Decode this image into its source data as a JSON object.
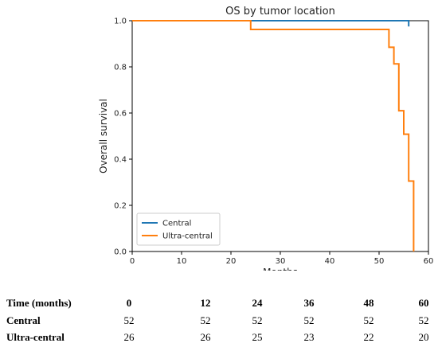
{
  "chart_data": {
    "type": "line",
    "title": "OS by tumor location",
    "xlabel": "Months",
    "ylabel": "Overall survival",
    "xlim": [
      0,
      60
    ],
    "ylim": [
      0,
      1.0
    ],
    "xticks": [
      "0",
      "10",
      "20",
      "30",
      "40",
      "50",
      "60"
    ],
    "yticks": [
      "0.0",
      "0.2",
      "0.4",
      "0.6",
      "0.8",
      "1.0"
    ],
    "grid": false,
    "legend_position": "bottom-left",
    "series": [
      {
        "name": "Central",
        "color": "#1f77b4",
        "step": true,
        "x": [
          0,
          56,
          56
        ],
        "y": [
          1.0,
          1.0,
          0.975
        ]
      },
      {
        "name": "Ultra-central",
        "color": "#ff7f0e",
        "step": true,
        "x": [
          0,
          24,
          52,
          53,
          54,
          55,
          56,
          57
        ],
        "y": [
          1.0,
          0.962,
          0.885,
          0.813,
          0.61,
          0.508,
          0.305,
          0.0
        ]
      }
    ]
  },
  "risk_table": {
    "header": "Time (months)",
    "times": [
      "0",
      "12",
      "24",
      "36",
      "48",
      "60"
    ],
    "rows": [
      {
        "label": "Central",
        "values": [
          "52",
          "52",
          "52",
          "52",
          "52",
          "52"
        ]
      },
      {
        "label": "Ultra-central",
        "values": [
          "26",
          "26",
          "25",
          "23",
          "22",
          "20"
        ]
      }
    ]
  }
}
